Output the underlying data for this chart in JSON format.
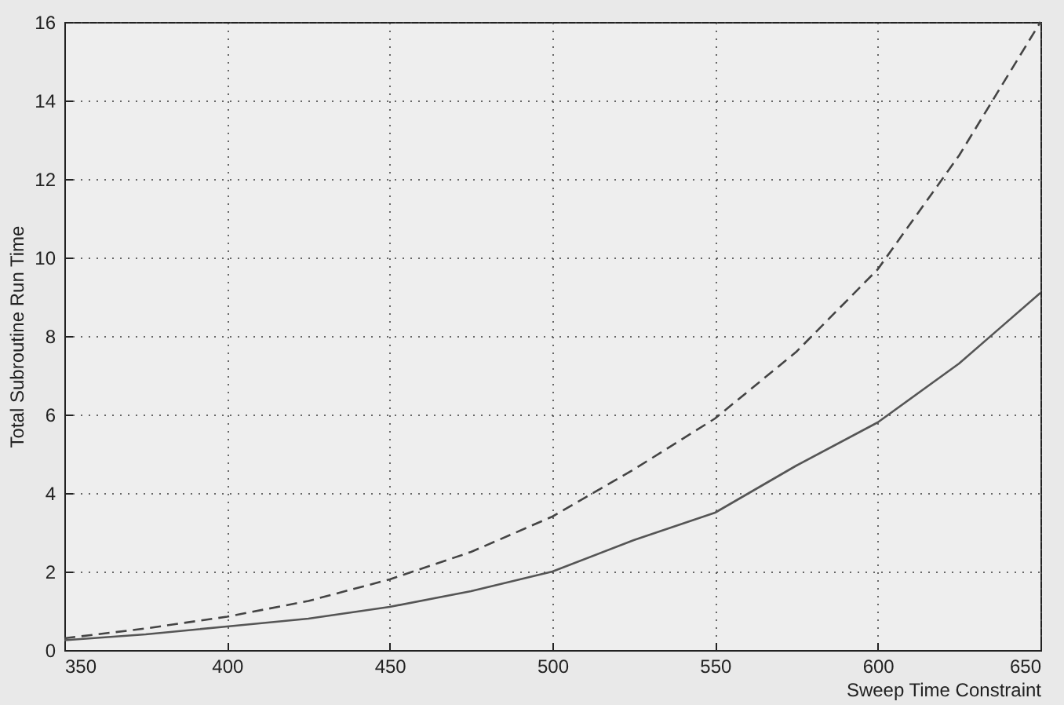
{
  "chart_data": {
    "type": "line",
    "xlabel": "Sweep Time Constraint",
    "ylabel": "Total Subroutine Run Time",
    "x": [
      350,
      375,
      400,
      425,
      450,
      475,
      500,
      525,
      550,
      575,
      600,
      625,
      650
    ],
    "series": [
      {
        "color": "#555555",
        "line_style": "solid",
        "values": [
          0.25,
          0.4,
          0.6,
          0.8,
          1.1,
          1.5,
          2.0,
          2.8,
          3.5,
          4.7,
          5.8,
          7.3,
          9.1
        ]
      },
      {
        "color": "#444444",
        "line_style": "dashed",
        "values": [
          0.3,
          0.55,
          0.85,
          1.25,
          1.8,
          2.5,
          3.4,
          4.6,
          5.9,
          7.6,
          9.7,
          12.6,
          16.0
        ]
      }
    ],
    "xlim": [
      350,
      650
    ],
    "xticks": [
      350,
      400,
      450,
      500,
      550,
      600,
      650
    ],
    "ylim": [
      0,
      16
    ],
    "yticks": [
      0,
      2,
      4,
      6,
      8,
      10,
      12,
      14,
      16
    ],
    "grid": true,
    "marker": "none"
  }
}
